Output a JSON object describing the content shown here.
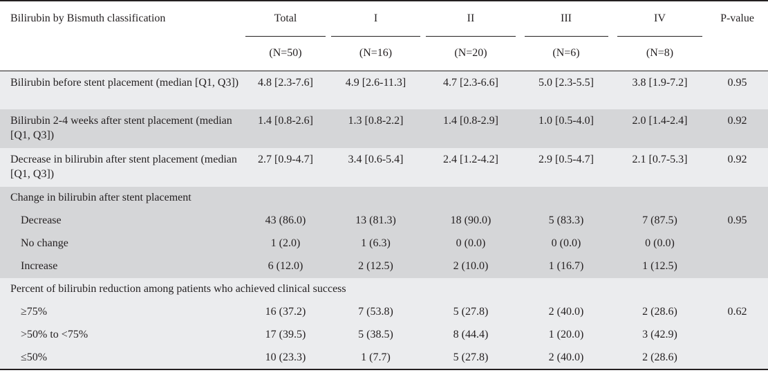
{
  "header": {
    "title": "Bilirubin by Bismuth classification",
    "columns": [
      {
        "label": "Total",
        "n": "(N=50)"
      },
      {
        "label": "I",
        "n": "(N=16)"
      },
      {
        "label": "II",
        "n": "(N=20)"
      },
      {
        "label": "III",
        "n": "(N=6)"
      },
      {
        "label": "IV",
        "n": "(N=8)"
      }
    ],
    "pvalue": "P-value"
  },
  "rows": [
    {
      "label": "Bilirubin before stent placement (median [Q1, Q3])",
      "values": [
        "4.8 [2.3-7.6]",
        "4.9 [2.6-11.3]",
        "4.7 [2.3-6.6]",
        "5.0 [2.3-5.5]",
        "3.8 [1.9-7.2]"
      ],
      "p": "0.95"
    },
    {
      "label": "Bilirubin 2-4 weeks after stent placement (median [Q1, Q3])",
      "values": [
        "1.4 [0.8-2.6]",
        "1.3 [0.8-2.2]",
        "1.4 [0.8-2.9]",
        "1.0 [0.5-4.0]",
        "2.0 [1.4-2.4]"
      ],
      "p": "0.92"
    },
    {
      "label": "Decrease in bilirubin after stent placement (median [Q1, Q3])",
      "values": [
        "2.7 [0.9-4.7]",
        "3.4 [0.6-5.4]",
        "2.4 [1.2-4.2]",
        "2.9 [0.5-4.7]",
        "2.1 [0.7-5.3]"
      ],
      "p": "0.92"
    }
  ],
  "groups": [
    {
      "label": "Change in bilirubin after stent placement",
      "rows": [
        {
          "label": "Decrease",
          "values": [
            "43 (86.0)",
            "13 (81.3)",
            "18 (90.0)",
            "5 (83.3)",
            "7 (87.5)"
          ],
          "p": "0.95"
        },
        {
          "label": "No change",
          "values": [
            "1 (2.0)",
            "1 (6.3)",
            "0 (0.0)",
            "0 (0.0)",
            "0 (0.0)"
          ],
          "p": ""
        },
        {
          "label": "Increase",
          "values": [
            "6 (12.0)",
            "2 (12.5)",
            "2 (10.0)",
            "1 (16.7)",
            "1 (12.5)"
          ],
          "p": ""
        }
      ]
    },
    {
      "label": "Percent of bilirubin reduction among patients who achieved clinical success",
      "rows": [
        {
          "label": "≥75%",
          "values": [
            "16 (37.2)",
            "7 (53.8)",
            "5 (27.8)",
            "2 (40.0)",
            "2 (28.6)"
          ],
          "p": "0.62"
        },
        {
          "label": ">50% to <75%",
          "values": [
            "17 (39.5)",
            "5 (38.5)",
            "8 (44.4)",
            "1 (20.0)",
            "3 (42.9)"
          ],
          "p": ""
        },
        {
          "label": "≤50%",
          "values": [
            "10 (23.3)",
            "1 (7.7)",
            "5 (27.8)",
            "2 (40.0)",
            "2 (28.6)"
          ],
          "p": ""
        }
      ]
    }
  ],
  "colors": {
    "light_row": "#ebecee",
    "dark_row": "#d5d6d8",
    "rule": "#231f20"
  }
}
